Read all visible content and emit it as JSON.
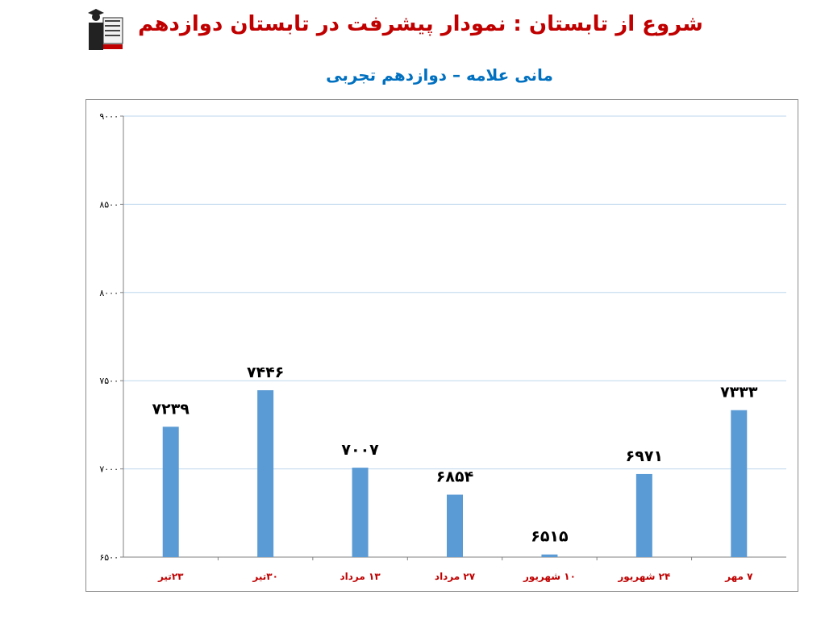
{
  "header": {
    "title": "شروع از تابستان : نمودار پیشرفت در تابستان دوازدهم",
    "subtitle": "مانی علامه – دوازدهم تجربی",
    "logo_name": "kanoon-logo"
  },
  "chart_data": {
    "type": "bar",
    "categories": [
      "۲۳تیر",
      "۳۰تیر",
      "۱۳ مرداد",
      "۲۷ مرداد",
      "۱۰ شهریور",
      "۲۴ شهریور",
      "۷ مهر"
    ],
    "values": [
      7239,
      7446,
      7007,
      6854,
      6515,
      6971,
      7333
    ],
    "value_labels": [
      "۷۲۳۹",
      "۷۴۴۶",
      "۷۰۰۷",
      "۶۸۵۴",
      "۶۵۱۵",
      "۶۹۷۱",
      "۷۳۳۳"
    ],
    "ylim": [
      6500,
      9000
    ],
    "yticks": [
      6500,
      7000,
      7500,
      8000,
      8500,
      9000
    ],
    "ytick_labels": [
      "۶۵۰۰",
      "۷۰۰۰",
      "۷۵۰۰",
      "۸۰۰۰",
      "۸۵۰۰",
      "۹۰۰۰"
    ],
    "grid": true,
    "legend": "none",
    "title": "",
    "xlabel": "",
    "ylabel": "",
    "colors": {
      "bar": "#5b9bd5",
      "category_label": "#c00000",
      "value_label": "#000000",
      "gridline": "#bdd7ee",
      "axis": "#808080"
    }
  }
}
